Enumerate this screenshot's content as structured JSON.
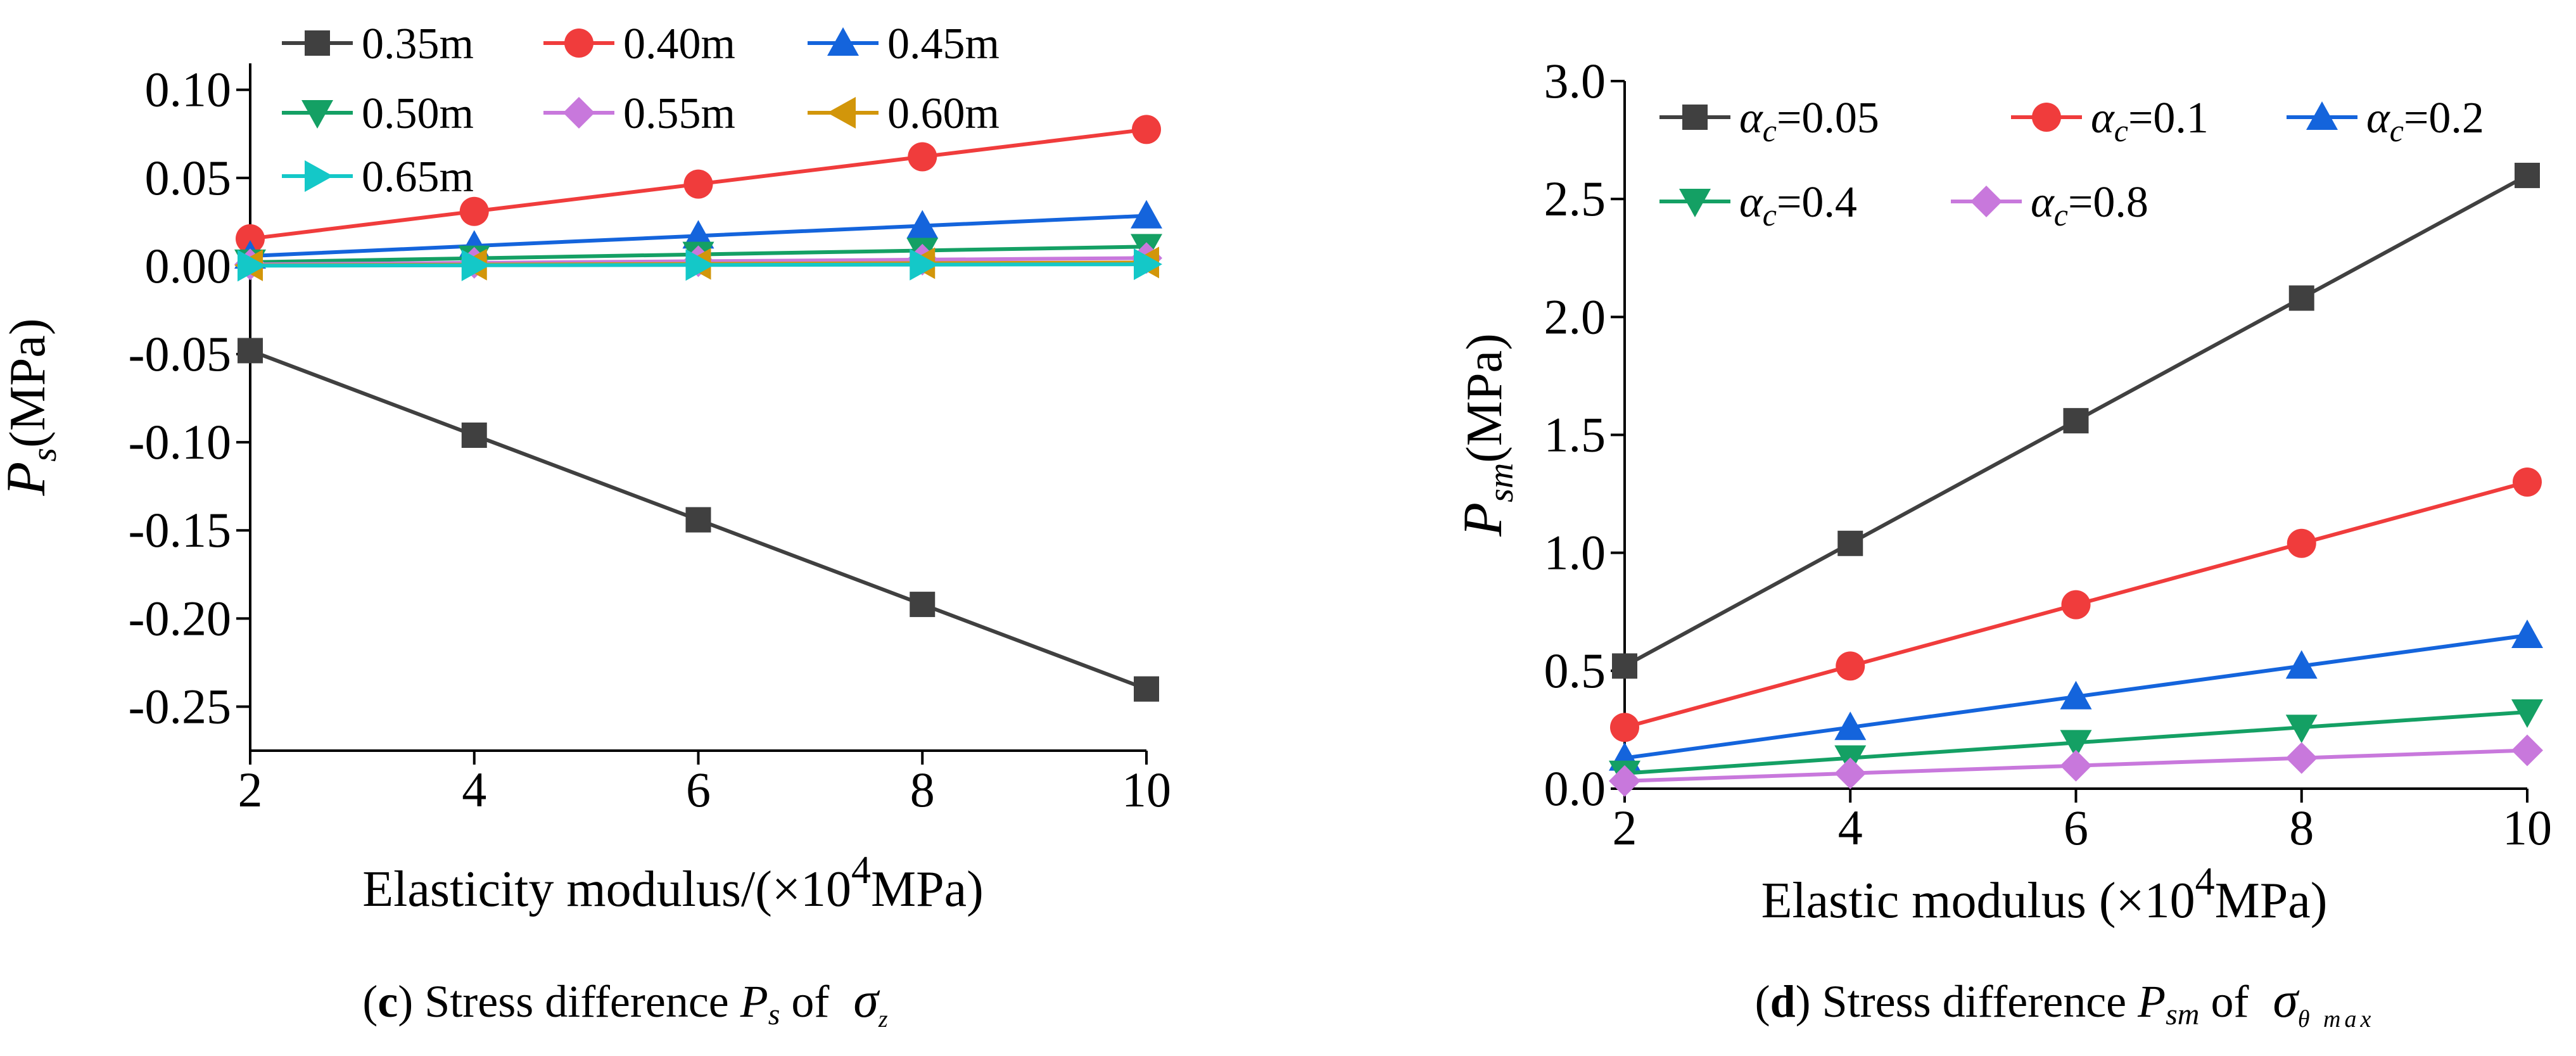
{
  "chart_data": [
    {
      "type": "line",
      "panel": "c",
      "caption_letter": "c",
      "caption_prefix": "Stress difference ",
      "caption_sym": "P",
      "caption_sub": "s",
      "caption_of": " of ",
      "caption_sigma": "σ",
      "caption_sigma_sub": "z",
      "ylabel_sym": "P",
      "ylabel_sub": "s",
      "ylabel_unit": "(MPa)",
      "xlabel_pre": "Elasticity modulus/(×10",
      "xlabel_sup": "4",
      "xlabel_post": "MPa)",
      "x": [
        2,
        4,
        6,
        8,
        10
      ],
      "xlim": [
        2,
        10
      ],
      "ylim": [
        -0.275,
        0.115
      ],
      "xticks": [
        "2",
        "4",
        "6",
        "8",
        "10"
      ],
      "yticks": [
        "-0.25",
        "-0.20",
        "-0.15",
        "-0.10",
        "-0.05",
        "0.00",
        "0.05",
        "0.10"
      ],
      "ytick_values": [
        -0.25,
        -0.2,
        -0.15,
        -0.1,
        -0.05,
        0.0,
        0.05,
        0.1
      ],
      "series": [
        {
          "name": "0.35m",
          "color": "#404040",
          "marker": "square",
          "values": [
            -0.048,
            -0.096,
            -0.144,
            -0.192,
            -0.24
          ]
        },
        {
          "name": "0.40m",
          "color": "#f03c3c",
          "marker": "circle",
          "values": [
            0.0155,
            0.031,
            0.0465,
            0.062,
            0.0775
          ]
        },
        {
          "name": "0.45m",
          "color": "#1464dc",
          "marker": "triangle-up",
          "values": [
            0.0057,
            0.0114,
            0.0171,
            0.0228,
            0.0285
          ]
        },
        {
          "name": "0.50m",
          "color": "#14a064",
          "marker": "triangle-down",
          "values": [
            0.0022,
            0.0044,
            0.0066,
            0.0088,
            0.011
          ]
        },
        {
          "name": "0.55m",
          "color": "#c878dc",
          "marker": "diamond",
          "values": [
            0.0009,
            0.0018,
            0.0027,
            0.0036,
            0.0045
          ]
        },
        {
          "name": "0.60m",
          "color": "#d2960a",
          "marker": "triangle-left",
          "values": [
            0.0004,
            0.0008,
            0.0012,
            0.0016,
            0.002
          ]
        },
        {
          "name": "0.65m",
          "color": "#14c8c8",
          "marker": "triangle-right",
          "values": [
            0.0002,
            0.0004,
            0.0006,
            0.0008,
            0.001
          ]
        }
      ]
    },
    {
      "type": "line",
      "panel": "d",
      "caption_letter": "d",
      "caption_prefix": "Stress difference ",
      "caption_sym": "P",
      "caption_sub": "sm",
      "caption_of": " of ",
      "caption_sigma": "σ",
      "caption_sigma_sub": "θ max",
      "ylabel_sym": "P",
      "ylabel_sub": "sm",
      "ylabel_unit": "(MPa)",
      "xlabel_pre": "Elastic modulus (×10",
      "xlabel_sup": "4",
      "xlabel_post": "MPa)",
      "x": [
        2,
        4,
        6,
        8,
        10
      ],
      "xlim": [
        2,
        10
      ],
      "ylim": [
        0,
        3.0
      ],
      "xticks": [
        "2",
        "4",
        "6",
        "8",
        "10"
      ],
      "yticks": [
        "0.0",
        "0.5",
        "1.0",
        "1.5",
        "2.0",
        "2.5",
        "3.0"
      ],
      "ytick_values": [
        0,
        0.5,
        1.0,
        1.5,
        2.0,
        2.5,
        3.0
      ],
      "series": [
        {
          "name_sym": "α",
          "name_sub": "c",
          "name_val": "=0.05",
          "color": "#404040",
          "marker": "square",
          "values": [
            0.52,
            1.04,
            1.56,
            2.08,
            2.6
          ]
        },
        {
          "name_sym": "α",
          "name_sub": "c",
          "name_val": "=0.1",
          "color": "#f03c3c",
          "marker": "circle",
          "values": [
            0.26,
            0.52,
            0.78,
            1.04,
            1.3
          ]
        },
        {
          "name_sym": "α",
          "name_sub": "c",
          "name_val": "=0.2",
          "color": "#1464dc",
          "marker": "triangle-up",
          "values": [
            0.13,
            0.26,
            0.39,
            0.52,
            0.65
          ]
        },
        {
          "name_sym": "α",
          "name_sub": "c",
          "name_val": "=0.4",
          "color": "#14a064",
          "marker": "triangle-down",
          "values": [
            0.065,
            0.13,
            0.195,
            0.26,
            0.325
          ]
        },
        {
          "name_sym": "α",
          "name_sub": "c",
          "name_val": "=0.8",
          "color": "#c878dc",
          "marker": "diamond",
          "values": [
            0.0325,
            0.065,
            0.0975,
            0.13,
            0.1625
          ]
        }
      ]
    }
  ]
}
